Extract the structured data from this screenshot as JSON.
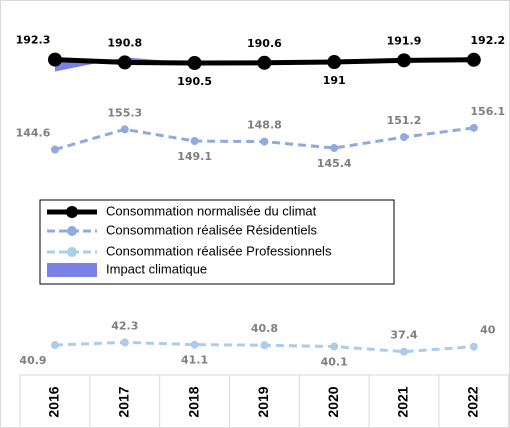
{
  "chart_data": {
    "type": "line",
    "categories": [
      "2016",
      "2017",
      "2018",
      "2019",
      "2020",
      "2021",
      "2022"
    ],
    "ylim": [
      25,
      208
    ],
    "series": [
      {
        "name": "Consommation normalisée du climat",
        "color": "#000000",
        "values": [
          192.3,
          190.8,
          190.5,
          190.6,
          191.0,
          191.9,
          192.2
        ]
      },
      {
        "name": "Consommation réalisée Résidentiels",
        "color": "#8faadc",
        "values": [
          144.6,
          155.3,
          149.1,
          148.8,
          145.4,
          151.2,
          156.1
        ]
      },
      {
        "name": "Consommation réalisée Professionnels",
        "color": "#a9cdea",
        "values": [
          40.9,
          42.3,
          41.1,
          40.8,
          40.1,
          37.4,
          40.0
        ]
      },
      {
        "name": "Impact climatique",
        "color": "#7b7fe8",
        "values": [
          186.0,
          193.5,
          190.5,
          189.2,
          191.5,
          191.2,
          192.2
        ]
      }
    ]
  }
}
